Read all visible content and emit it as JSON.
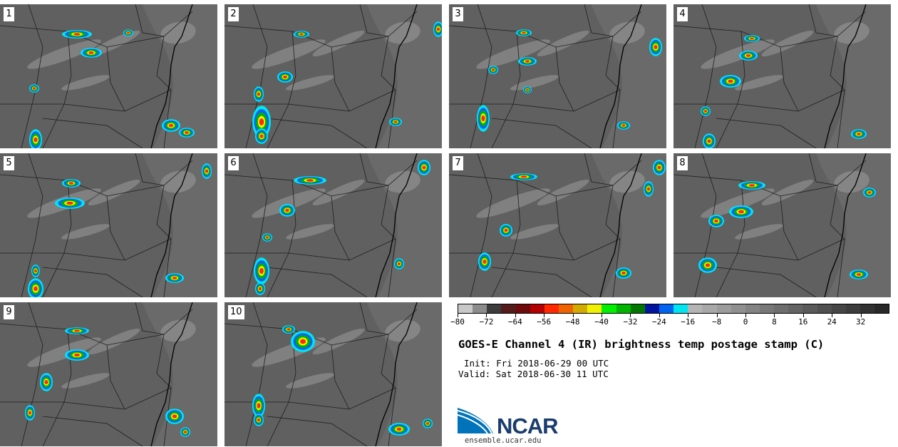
{
  "panels": [
    {
      "label": "1"
    },
    {
      "label": "2"
    },
    {
      "label": "3"
    },
    {
      "label": "4"
    },
    {
      "label": "5"
    },
    {
      "label": "6"
    },
    {
      "label": "7"
    },
    {
      "label": "8"
    },
    {
      "label": "9"
    },
    {
      "label": "10"
    }
  ],
  "colorbar": {
    "colors": [
      "#c8c8c8",
      "#8c8c8c",
      "#3c3c3c",
      "#551a1a",
      "#6e0a0a",
      "#b40000",
      "#ff2800",
      "#f06400",
      "#d2aa00",
      "#f0f000",
      "#00f000",
      "#00b400",
      "#007800",
      "#0014a0",
      "#0064f0",
      "#00e6f0",
      "#b4b4b4",
      "#a8a8a8",
      "#9c9c9c",
      "#909090",
      "#848484",
      "#787878",
      "#6e6e6e",
      "#646464",
      "#5a5a5a",
      "#505050",
      "#464646",
      "#3c3c3c",
      "#323232",
      "#282828"
    ],
    "tick_labels": [
      "−80",
      "−72",
      "−64",
      "−56",
      "−48",
      "−40",
      "−32",
      "−24",
      "−16",
      "−8",
      "0",
      "8",
      "16",
      "24",
      "32"
    ],
    "tick_values": [
      -80,
      -72,
      -64,
      -56,
      -48,
      -40,
      -32,
      -24,
      -16,
      -8,
      0,
      8,
      16,
      24,
      32
    ],
    "range": [
      -80,
      40
    ]
  },
  "title": "GOES-E Channel 4 (IR) brightness temp postage stamp (C)",
  "init": "Init: Fri 2018-06-29 00 UTC",
  "valid": "Valid: Sat 2018-06-30 11 UTC",
  "logo": {
    "text": "NCAR",
    "url": "ensemble.ucar.edu",
    "blue": "#0073bb",
    "navy": "#1a3d6e"
  }
}
